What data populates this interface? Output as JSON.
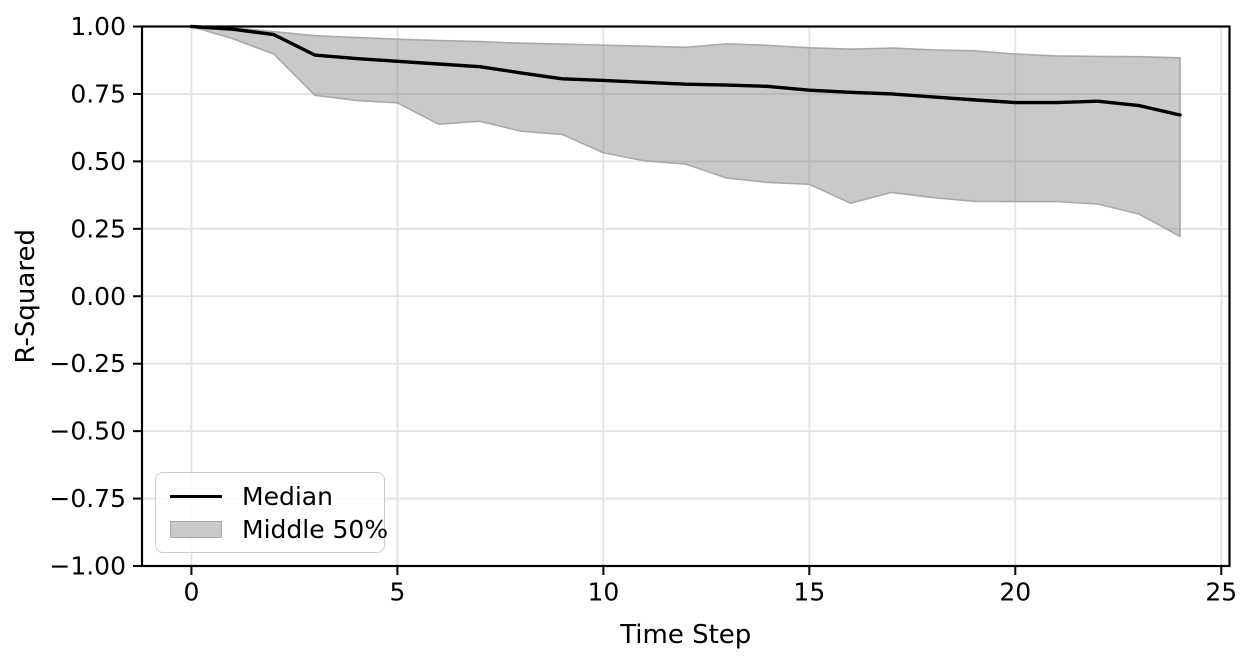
{
  "chart_data": {
    "type": "line",
    "title": "",
    "xlabel": "Time Step",
    "ylabel": "R-Squared",
    "x": [
      0,
      1,
      2,
      3,
      4,
      5,
      6,
      7,
      8,
      9,
      10,
      11,
      12,
      13,
      14,
      15,
      16,
      17,
      18,
      19,
      20,
      21,
      22,
      23,
      24
    ],
    "series": [
      {
        "name": "Median",
        "kind": "line",
        "color": "#000000",
        "values": [
          1.0,
          0.99,
          0.97,
          0.894,
          0.881,
          0.871,
          0.861,
          0.851,
          0.828,
          0.806,
          0.8,
          0.793,
          0.786,
          0.783,
          0.778,
          0.764,
          0.756,
          0.75,
          0.739,
          0.728,
          0.718,
          0.718,
          0.723,
          0.707,
          0.672
        ]
      },
      {
        "name": "Middle 50%",
        "kind": "band",
        "fill_color": "#7f7f7f",
        "fill_opacity": 0.42,
        "edge_color": "#a9a9a9",
        "upper": [
          1.0,
          0.995,
          0.981,
          0.966,
          0.959,
          0.953,
          0.948,
          0.944,
          0.938,
          0.935,
          0.931,
          0.927,
          0.923,
          0.936,
          0.93,
          0.921,
          0.916,
          0.92,
          0.913,
          0.91,
          0.898,
          0.891,
          0.889,
          0.888,
          0.884
        ],
        "lower": [
          1.0,
          0.955,
          0.898,
          0.745,
          0.726,
          0.717,
          0.638,
          0.649,
          0.612,
          0.6,
          0.532,
          0.502,
          0.49,
          0.438,
          0.422,
          0.415,
          0.345,
          0.385,
          0.366,
          0.352,
          0.351,
          0.351,
          0.342,
          0.305,
          0.222
        ]
      }
    ],
    "xlim": [
      -1.2,
      25.2
    ],
    "ylim": [
      -1.0,
      1.0
    ],
    "x_ticks": [
      {
        "v": 0,
        "label": "0"
      },
      {
        "v": 5,
        "label": "5"
      },
      {
        "v": 10,
        "label": "10"
      },
      {
        "v": 15,
        "label": "15"
      },
      {
        "v": 20,
        "label": "20"
      },
      {
        "v": 25,
        "label": "25"
      }
    ],
    "y_ticks": [
      {
        "v": 1.0,
        "label": "1.00"
      },
      {
        "v": 0.75,
        "label": "0.75"
      },
      {
        "v": 0.5,
        "label": "0.50"
      },
      {
        "v": 0.25,
        "label": "0.25"
      },
      {
        "v": 0.0,
        "label": "0.00"
      },
      {
        "v": -0.25,
        "label": "−0.25"
      },
      {
        "v": -0.5,
        "label": "−0.50"
      },
      {
        "v": -0.75,
        "label": "−0.75"
      },
      {
        "v": -1.0,
        "label": "−1.00"
      }
    ],
    "grid": true,
    "grid_color": "#e3e3e3",
    "background": "#ffffff",
    "spine_color": "#000000",
    "legend": {
      "position": "lower left",
      "items": [
        {
          "label": "Median",
          "swatch": "line",
          "color": "#000000"
        },
        {
          "label": "Middle 50%",
          "swatch": "patch",
          "fill": "#c9c9c9",
          "edge": "#a9a9a9"
        }
      ]
    }
  }
}
